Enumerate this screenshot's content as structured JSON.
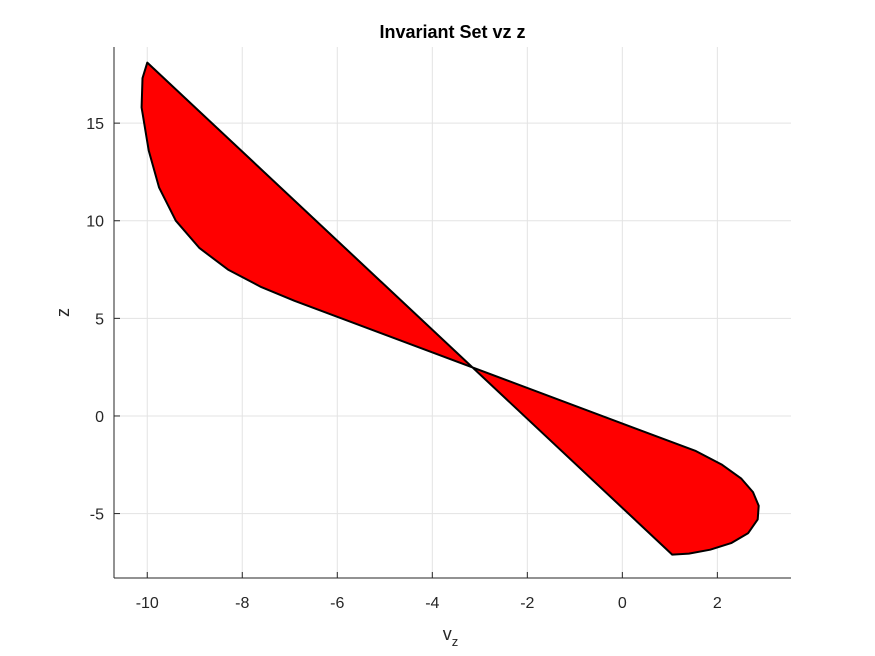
{
  "chart_data": {
    "type": "area",
    "title": "Invariant Set vz z",
    "xlabel": "v",
    "xlabel_subscript": "z",
    "ylabel": "z",
    "xlim": [
      -10.7,
      3.55
    ],
    "ylim": [
      -8.3,
      18.9
    ],
    "xticks": [
      -10,
      -8,
      -6,
      -4,
      -2,
      0,
      2
    ],
    "xtick_labels": [
      "-10",
      "-8",
      "-6",
      "-4",
      "-2",
      "0",
      "2"
    ],
    "yticks": [
      -5,
      0,
      5,
      10,
      15
    ],
    "ytick_labels": [
      "-5",
      "0",
      "5",
      "10",
      "15"
    ],
    "grid": true,
    "fill_color": "#ff0000",
    "edge_color": "#000000",
    "series": [
      {
        "x": [
          -10.0,
          1.05,
          1.4,
          1.85,
          2.3,
          2.65,
          2.85,
          2.87,
          2.75,
          2.5,
          2.1,
          1.55,
          -6.9,
          -7.6,
          -8.3,
          -8.9,
          -9.4,
          -9.75,
          -9.97,
          -10.12,
          -10.1,
          -10.0
        ],
        "y": [
          18.1,
          -7.1,
          -7.05,
          -6.85,
          -6.5,
          -6.0,
          -5.3,
          -4.6,
          -3.9,
          -3.2,
          -2.5,
          -1.8,
          5.9,
          6.6,
          7.5,
          8.6,
          10.0,
          11.7,
          13.6,
          15.8,
          17.3,
          18.1
        ]
      }
    ]
  }
}
